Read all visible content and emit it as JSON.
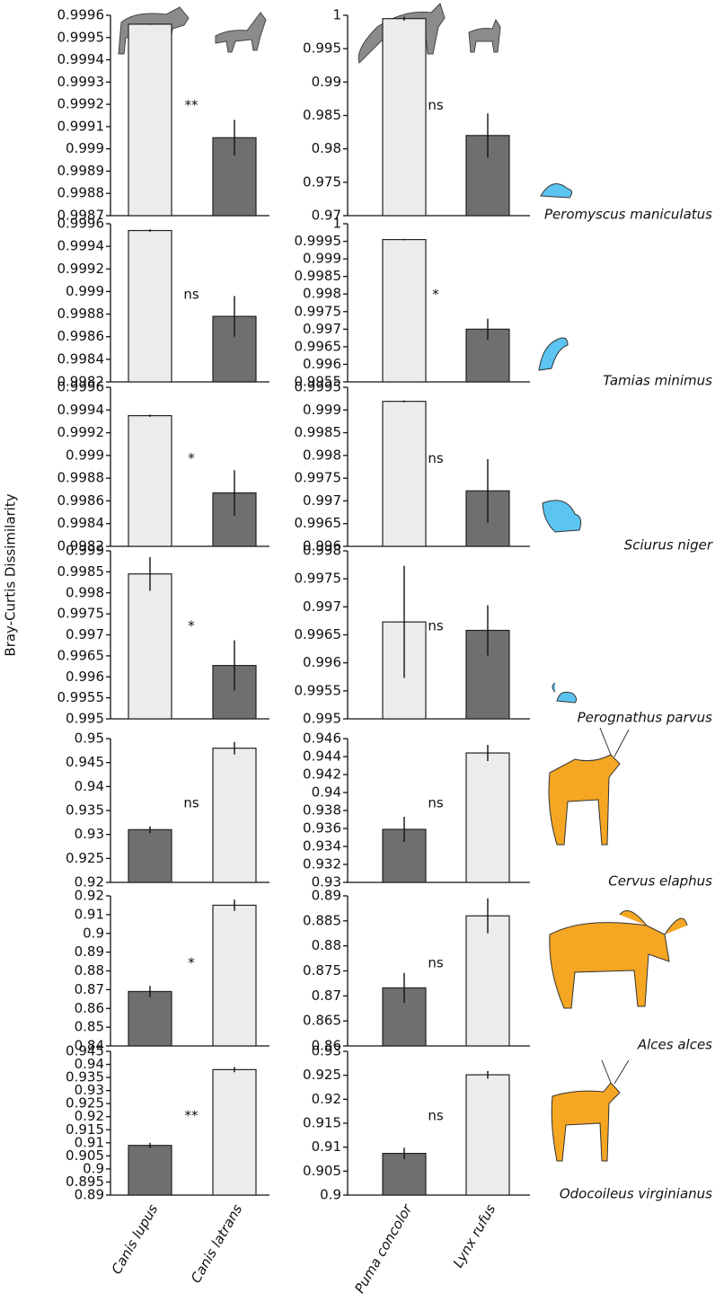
{
  "ylabel": "Bray-Curtis Dissimilarity",
  "chart_data": [
    {
      "type": "bar",
      "values": [
        0.99956,
        0.99905
      ],
      "errors": [
        3e-06,
        8e-05
      ],
      "colors": [
        "#ececec",
        "#6e7070"
      ],
      "ylim": [
        0.9987,
        0.9996
      ],
      "yticks": [
        0.9987,
        0.9988,
        0.9989,
        0.999,
        0.9991,
        0.9992,
        0.9993,
        0.9994,
        0.9995,
        0.9996
      ],
      "annotation": "**"
    },
    {
      "type": "bar",
      "values": [
        0.9995,
        0.982
      ],
      "errors": [
        0.0003,
        0.0033
      ],
      "colors": [
        "#ececec",
        "#6e7070"
      ],
      "ylim": [
        0.97,
        1
      ],
      "yticks": [
        0.97,
        0.975,
        0.98,
        0.985,
        0.99,
        0.995,
        1
      ],
      "annotation": "ns",
      "label": "Peromyscus maniculatus"
    },
    {
      "type": "bar",
      "values": [
        0.99954,
        0.99878
      ],
      "errors": [
        1e-05,
        0.00018
      ],
      "colors": [
        "#ececec",
        "#6e7070"
      ],
      "ylim": [
        0.9982,
        0.9996
      ],
      "yticks": [
        0.9982,
        0.9984,
        0.9986,
        0.9988,
        0.999,
        0.9992,
        0.9994,
        0.9996
      ],
      "annotation": "ns"
    },
    {
      "type": "bar",
      "values": [
        0.99955,
        0.997
      ],
      "errors": [
        2e-05,
        0.0003
      ],
      "colors": [
        "#ececec",
        "#6e7070"
      ],
      "ylim": [
        0.9955,
        1
      ],
      "yticks": [
        0.9955,
        0.996,
        0.9965,
        0.997,
        0.9975,
        0.998,
        0.9985,
        0.999,
        0.9995,
        1
      ],
      "annotation": "*",
      "label": "Tamias minimus"
    },
    {
      "type": "bar",
      "values": [
        0.99935,
        0.99867
      ],
      "errors": [
        1e-05,
        0.0002
      ],
      "colors": [
        "#ececec",
        "#6e7070"
      ],
      "ylim": [
        0.9982,
        0.9996
      ],
      "yticks": [
        0.9982,
        0.9984,
        0.9986,
        0.9988,
        0.999,
        0.9992,
        0.9994,
        0.9996
      ],
      "annotation": "*"
    },
    {
      "type": "bar",
      "values": [
        0.99919,
        0.99722
      ],
      "errors": [
        2e-05,
        0.0007
      ],
      "colors": [
        "#ececec",
        "#6e7070"
      ],
      "ylim": [
        0.996,
        0.9995
      ],
      "yticks": [
        0.996,
        0.9965,
        0.997,
        0.9975,
        0.998,
        0.9985,
        0.999,
        0.9995
      ],
      "annotation": "ns",
      "label": "Sciurus niger"
    },
    {
      "type": "bar",
      "values": [
        0.99845,
        0.99627
      ],
      "errors": [
        0.0004,
        0.0006
      ],
      "colors": [
        "#ececec",
        "#6e7070"
      ],
      "ylim": [
        0.995,
        0.999
      ],
      "yticks": [
        0.995,
        0.9955,
        0.996,
        0.9965,
        0.997,
        0.9975,
        0.998,
        0.9985,
        0.999
      ],
      "annotation": "*"
    },
    {
      "type": "bar",
      "values": [
        0.99673,
        0.99658
      ],
      "errors": [
        0.001,
        0.00045
      ],
      "colors": [
        "#ececec",
        "#6e7070"
      ],
      "ylim": [
        0.995,
        0.998
      ],
      "yticks": [
        0.995,
        0.9955,
        0.996,
        0.9965,
        0.997,
        0.9975,
        0.998
      ],
      "annotation": "ns",
      "label": "Perognathus parvus"
    },
    {
      "type": "bar",
      "values": [
        0.931,
        0.948
      ],
      "errors": [
        0.0007,
        0.0013
      ],
      "colors": [
        "#6e7070",
        "#ececec"
      ],
      "ylim": [
        0.92,
        0.95
      ],
      "yticks": [
        0.92,
        0.925,
        0.93,
        0.935,
        0.94,
        0.945,
        0.95
      ],
      "annotation": "ns"
    },
    {
      "type": "bar",
      "values": [
        0.9359,
        0.9444
      ],
      "errors": [
        0.0014,
        0.0009
      ],
      "colors": [
        "#6e7070",
        "#ececec"
      ],
      "ylim": [
        0.93,
        0.946
      ],
      "yticks": [
        0.93,
        0.932,
        0.934,
        0.936,
        0.938,
        0.94,
        0.942,
        0.944,
        0.946
      ],
      "annotation": "ns",
      "label": "Cervus elaphus"
    },
    {
      "type": "bar",
      "values": [
        0.869,
        0.915
      ],
      "errors": [
        0.003,
        0.003
      ],
      "colors": [
        "#6e7070",
        "#ececec"
      ],
      "ylim": [
        0.84,
        0.92
      ],
      "yticks": [
        0.84,
        0.85,
        0.86,
        0.87,
        0.88,
        0.89,
        0.9,
        0.91,
        0.92
      ],
      "annotation": "*"
    },
    {
      "type": "bar",
      "values": [
        0.8716,
        0.886
      ],
      "errors": [
        0.003,
        0.0035
      ],
      "colors": [
        "#6e7070",
        "#ececec"
      ],
      "ylim": [
        0.86,
        0.89
      ],
      "yticks": [
        0.86,
        0.865,
        0.87,
        0.875,
        0.88,
        0.885,
        0.89
      ],
      "annotation": "ns",
      "label": "Alces alces"
    },
    {
      "type": "bar",
      "categories": [
        "Canis lupus",
        "Canis latrans"
      ],
      "values": [
        0.909,
        0.938
      ],
      "errors": [
        0.001,
        0.001
      ],
      "colors": [
        "#6e7070",
        "#ececec"
      ],
      "ylim": [
        0.89,
        0.945
      ],
      "yticks": [
        0.89,
        0.895,
        0.9,
        0.905,
        0.91,
        0.915,
        0.92,
        0.925,
        0.93,
        0.935,
        0.94,
        0.945
      ],
      "annotation": "**"
    },
    {
      "type": "bar",
      "categories": [
        "Puma concolor",
        "Lynx rufus"
      ],
      "values": [
        0.9087,
        0.9251
      ],
      "errors": [
        0.0012,
        0.0008
      ],
      "colors": [
        "#6e7070",
        "#ececec"
      ],
      "ylim": [
        0.9,
        0.93
      ],
      "yticks": [
        0.9,
        0.905,
        0.91,
        0.915,
        0.92,
        0.925,
        0.93
      ],
      "annotation": "ns",
      "label": "Odocoileus virginianus"
    }
  ]
}
